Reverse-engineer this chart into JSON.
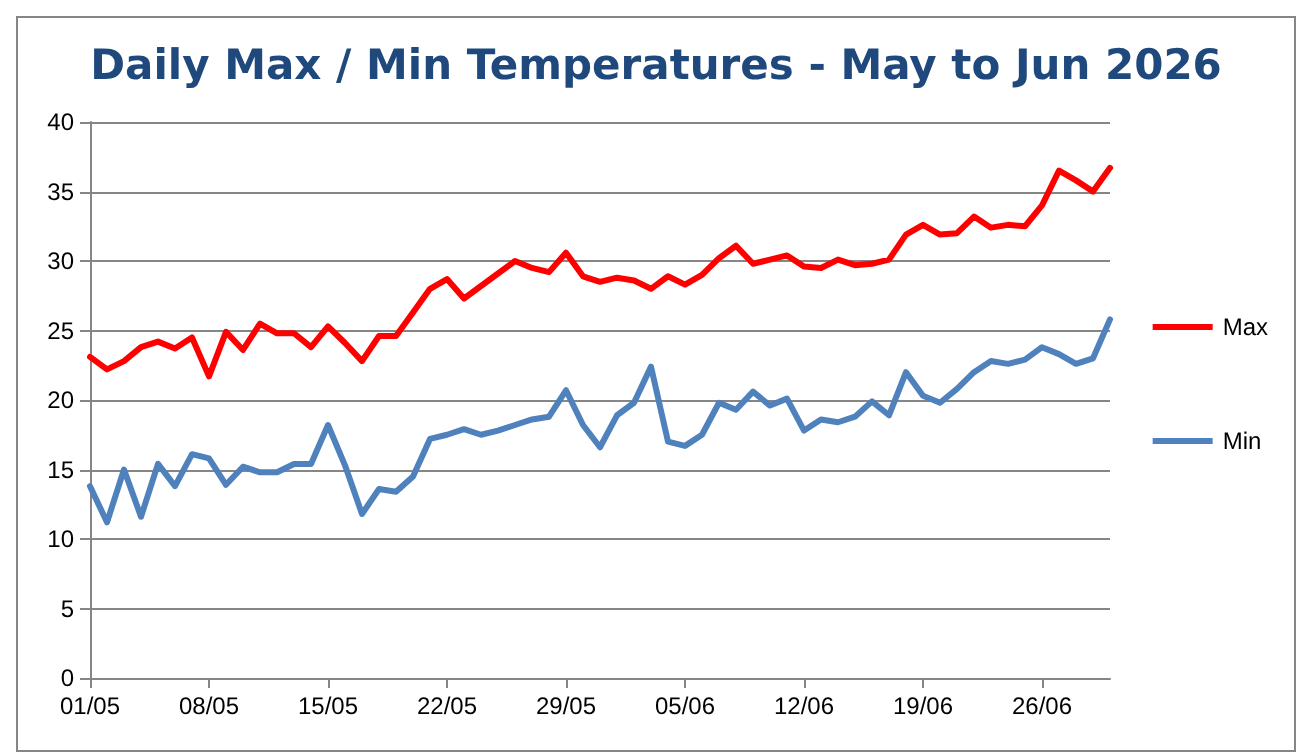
{
  "chart_data": {
    "type": "line",
    "title": "Daily Max / Min Temperatures - May to Jun 2026",
    "x": [
      "2026-05-01",
      "2026-05-02",
      "2026-05-03",
      "2026-05-04",
      "2026-05-05",
      "2026-05-06",
      "2026-05-07",
      "2026-05-08",
      "2026-05-09",
      "2026-05-10",
      "2026-05-11",
      "2026-05-12",
      "2026-05-13",
      "2026-05-14",
      "2026-05-15",
      "2026-05-16",
      "2026-05-17",
      "2026-05-18",
      "2026-05-19",
      "2026-05-20",
      "2026-05-21",
      "2026-05-22",
      "2026-05-23",
      "2026-05-24",
      "2026-05-25",
      "2026-05-26",
      "2026-05-27",
      "2026-05-28",
      "2026-05-29",
      "2026-05-30",
      "2026-05-31",
      "2026-06-01",
      "2026-06-02",
      "2026-06-03",
      "2026-06-04",
      "2026-06-05",
      "2026-06-06",
      "2026-06-07",
      "2026-06-08",
      "2026-06-09",
      "2026-06-10",
      "2026-06-11",
      "2026-06-12",
      "2026-06-13",
      "2026-06-14",
      "2026-06-15",
      "2026-06-16",
      "2026-06-17",
      "2026-06-18",
      "2026-06-19",
      "2026-06-20",
      "2026-06-21",
      "2026-06-22",
      "2026-06-23",
      "2026-06-24",
      "2026-06-25",
      "2026-06-26",
      "2026-06-27",
      "2026-06-28",
      "2026-06-29",
      "2026-06-30"
    ],
    "series": [
      {
        "name": "Max",
        "color": "#ff0000",
        "values": [
          23.1,
          22.2,
          22.8,
          23.8,
          24.2,
          23.7,
          24.5,
          21.7,
          24.9,
          23.6,
          25.5,
          24.8,
          24.8,
          23.8,
          25.3,
          24.1,
          22.8,
          24.6,
          24.6,
          26.3,
          28.0,
          28.7,
          27.3,
          28.2,
          29.1,
          30.0,
          29.5,
          29.2,
          30.6,
          28.9,
          28.5,
          28.8,
          28.6,
          28.0,
          28.9,
          28.3,
          29.0,
          30.2,
          31.1,
          29.8,
          30.1,
          30.4,
          29.6,
          29.5,
          30.1,
          29.7,
          29.8,
          30.1,
          31.9,
          32.6,
          31.9,
          32.0,
          33.2,
          32.4,
          32.6,
          32.5,
          34.0,
          36.5,
          35.8,
          35.0,
          36.7
        ]
      },
      {
        "name": "Min",
        "color": "#4f81bd",
        "values": [
          13.8,
          11.2,
          15.0,
          11.6,
          15.4,
          13.8,
          16.1,
          15.8,
          13.9,
          15.2,
          14.8,
          14.8,
          15.4,
          15.4,
          18.2,
          15.3,
          11.8,
          13.6,
          13.4,
          14.5,
          17.2,
          17.5,
          17.9,
          17.5,
          17.8,
          18.2,
          18.6,
          18.8,
          20.7,
          18.2,
          16.6,
          18.9,
          19.8,
          22.4,
          17.0,
          16.7,
          17.5,
          19.8,
          19.3,
          20.6,
          19.6,
          20.1,
          17.8,
          18.6,
          18.4,
          18.8,
          19.9,
          18.9,
          22.0,
          20.3,
          19.8,
          20.8,
          22.0,
          22.8,
          22.6,
          22.9,
          23.8,
          23.3,
          22.6,
          23.0,
          25.8
        ]
      }
    ],
    "xlim": [
      "2026-05-01",
      "2026-06-30"
    ],
    "xticks": [
      {
        "value": "2026-05-01",
        "label": "01/05"
      },
      {
        "value": "2026-05-08",
        "label": "08/05"
      },
      {
        "value": "2026-05-15",
        "label": "15/05"
      },
      {
        "value": "2026-05-22",
        "label": "22/05"
      },
      {
        "value": "2026-05-29",
        "label": "29/05"
      },
      {
        "value": "2026-06-05",
        "label": "05/06"
      },
      {
        "value": "2026-06-12",
        "label": "12/06"
      },
      {
        "value": "2026-06-19",
        "label": "19/06"
      },
      {
        "value": "2026-06-26",
        "label": "26/06"
      }
    ],
    "ylim": [
      0,
      40
    ],
    "yticks": [
      0,
      5,
      10,
      15,
      20,
      25,
      30,
      35,
      40
    ],
    "grid": "y",
    "legend": "right",
    "marker": "none",
    "line_style": "solid"
  }
}
